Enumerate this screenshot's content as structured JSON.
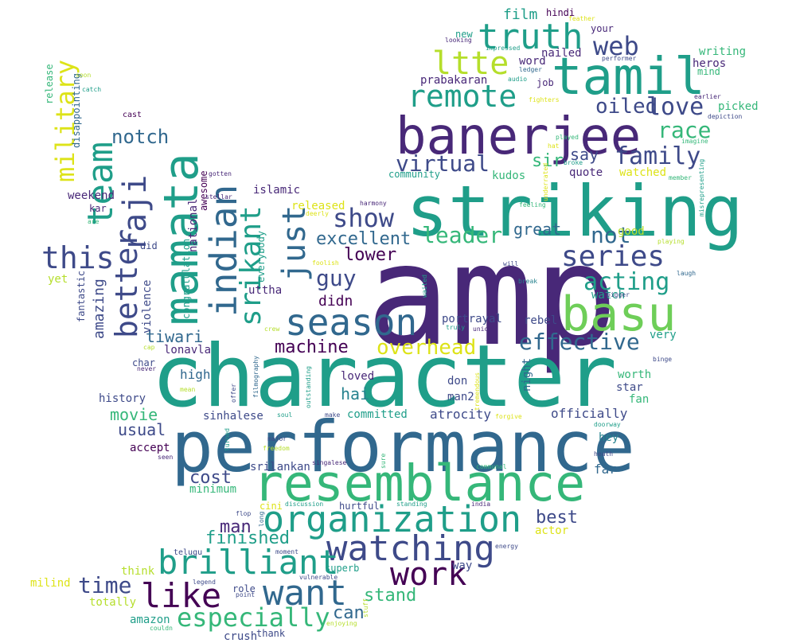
{
  "palette": {
    "dark_purple": "#440154",
    "indigo": "#482878",
    "slate_blue": "#3e4a89",
    "steel_blue": "#31688e",
    "blue_teal": "#26828e",
    "teal": "#1f9e89",
    "green_teal": "#35b779",
    "green": "#6ece58",
    "lime": "#b5de2b",
    "yellow": "#dde318"
  },
  "words": [
    {
      "text": "amp"
    },
    {
      "text": "character"
    },
    {
      "text": "performance"
    },
    {
      "text": "striking"
    },
    {
      "text": "banerjee"
    },
    {
      "text": "resemblance"
    },
    {
      "text": "mamata"
    },
    {
      "text": "tamil"
    },
    {
      "text": "basu"
    },
    {
      "text": "organization"
    },
    {
      "text": "indian"
    },
    {
      "text": "season"
    },
    {
      "text": "watching"
    },
    {
      "text": "truth"
    },
    {
      "text": "team"
    },
    {
      "text": "brilliant"
    },
    {
      "text": "want"
    },
    {
      "text": "like"
    },
    {
      "text": "work"
    },
    {
      "text": "remote"
    },
    {
      "text": "better"
    },
    {
      "text": "just"
    },
    {
      "text": "srikant"
    },
    {
      "text": "raji"
    },
    {
      "text": "this"
    },
    {
      "text": "series"
    },
    {
      "text": "ltte"
    },
    {
      "text": "show"
    },
    {
      "text": "especially"
    },
    {
      "text": "family"
    },
    {
      "text": "acting"
    },
    {
      "text": "web"
    },
    {
      "text": "love"
    },
    {
      "text": "effective"
    },
    {
      "text": "military"
    },
    {
      "text": "leader"
    },
    {
      "text": "race"
    },
    {
      "text": "virtual"
    },
    {
      "text": "overhead"
    },
    {
      "text": "time"
    },
    {
      "text": "guy"
    },
    {
      "text": "machine"
    },
    {
      "text": "oiled"
    },
    {
      "text": "not"
    },
    {
      "text": "notch"
    },
    {
      "text": "excellent"
    },
    {
      "text": "lower"
    },
    {
      "text": "finished"
    },
    {
      "text": "stand"
    },
    {
      "text": "best"
    },
    {
      "text": "cost"
    },
    {
      "text": "man"
    },
    {
      "text": "movie"
    },
    {
      "text": "usual"
    },
    {
      "text": "hai"
    },
    {
      "text": "can"
    },
    {
      "text": "great"
    },
    {
      "text": "say"
    },
    {
      "text": "sir"
    },
    {
      "text": "amazing"
    },
    {
      "text": "tiwari"
    },
    {
      "text": "didn"
    },
    {
      "text": "film"
    },
    {
      "text": "high"
    },
    {
      "text": "committed"
    },
    {
      "text": "atrocity"
    },
    {
      "text": "officially"
    },
    {
      "text": "islamic"
    },
    {
      "text": "good"
    },
    {
      "text": "watch"
    },
    {
      "text": "portrayal"
    },
    {
      "text": "night"
    },
    {
      "text": "fan"
    },
    {
      "text": "worth"
    },
    {
      "text": "star"
    },
    {
      "text": "hey"
    },
    {
      "text": "far"
    },
    {
      "text": "loved"
    },
    {
      "text": "don"
    },
    {
      "text": "man2"
    },
    {
      "text": "rebel"
    },
    {
      "text": "very"
    },
    {
      "text": "nailed"
    },
    {
      "text": "prabakaran"
    },
    {
      "text": "word"
    },
    {
      "text": "hindi"
    },
    {
      "text": "your"
    },
    {
      "text": "new"
    },
    {
      "text": "writing"
    },
    {
      "text": "heros"
    },
    {
      "text": "mind"
    },
    {
      "text": "picked"
    },
    {
      "text": "weekend"
    },
    {
      "text": "kar"
    },
    {
      "text": "national"
    },
    {
      "text": "violence"
    },
    {
      "text": "congratulation"
    },
    {
      "text": "awesome"
    },
    {
      "text": "everybody"
    },
    {
      "text": "uttha"
    },
    {
      "text": "released"
    },
    {
      "text": "kudos"
    },
    {
      "text": "quote"
    },
    {
      "text": "watched"
    },
    {
      "text": "community"
    },
    {
      "text": "history"
    },
    {
      "text": "sinhalese"
    },
    {
      "text": "accept"
    },
    {
      "text": "srilankan"
    },
    {
      "text": "minimum"
    },
    {
      "text": "lonavla"
    },
    {
      "text": "char"
    },
    {
      "text": "release"
    },
    {
      "text": "disappointing"
    },
    {
      "text": "fantastic"
    },
    {
      "text": "yet"
    },
    {
      "text": "did"
    },
    {
      "text": "actor"
    },
    {
      "text": "milind"
    },
    {
      "text": "think"
    },
    {
      "text": "totally"
    },
    {
      "text": "amazon"
    },
    {
      "text": "telugu"
    },
    {
      "text": "superb"
    },
    {
      "text": "way"
    },
    {
      "text": "role"
    },
    {
      "text": "crush"
    },
    {
      "text": "thank"
    },
    {
      "text": "hurtful"
    },
    {
      "text": "cini"
    },
    {
      "text": "job"
    },
    {
      "text": "cast"
    },
    {
      "text": "soon"
    },
    {
      "text": "catch"
    },
    {
      "text": "are"
    },
    {
      "text": "gotten"
    },
    {
      "text": "stellar"
    },
    {
      "text": "harmony"
    },
    {
      "text": "deerly"
    },
    {
      "text": "feeling"
    },
    {
      "text": "underrated"
    },
    {
      "text": "played"
    },
    {
      "text": "broke"
    },
    {
      "text": "member"
    },
    {
      "text": "misrepresenting"
    },
    {
      "text": "playing"
    },
    {
      "text": "depiction"
    },
    {
      "text": "imagine"
    },
    {
      "text": "earlier"
    },
    {
      "text": "looking"
    },
    {
      "text": "impressed"
    },
    {
      "text": "feather"
    },
    {
      "text": "performer"
    },
    {
      "text": "ledger"
    },
    {
      "text": "audio"
    },
    {
      "text": "fighters"
    },
    {
      "text": "hat"
    },
    {
      "text": "foolish"
    },
    {
      "text": "waited"
    },
    {
      "text": "break"
    },
    {
      "text": "laugh"
    },
    {
      "text": "bigger"
    },
    {
      "text": "will"
    },
    {
      "text": "truly"
    },
    {
      "text": "union"
    },
    {
      "text": "crew"
    },
    {
      "text": "binge"
    },
    {
      "text": "cap"
    },
    {
      "text": "never"
    },
    {
      "text": "mean"
    },
    {
      "text": "filmography"
    },
    {
      "text": "offer"
    },
    {
      "text": "outstanding"
    },
    {
      "text": "tremendous"
    },
    {
      "text": "forgive"
    },
    {
      "text": "doorway"
    },
    {
      "text": "heath"
    },
    {
      "text": "soul"
    },
    {
      "text": "make"
    },
    {
      "text": "turned"
    },
    {
      "text": "major"
    },
    {
      "text": "freedom"
    },
    {
      "text": "seen"
    },
    {
      "text": "singalese"
    },
    {
      "text": "sure"
    },
    {
      "text": "communal"
    },
    {
      "text": "discussion"
    },
    {
      "text": "standing"
    },
    {
      "text": "india"
    },
    {
      "text": "flop"
    },
    {
      "text": "long"
    },
    {
      "text": "energy"
    },
    {
      "text": "moment"
    },
    {
      "text": "vulnerable"
    },
    {
      "text": "legend"
    },
    {
      "text": "point"
    },
    {
      "text": "stuff"
    },
    {
      "text": "couldn"
    },
    {
      "text": "enjoying"
    }
  ]
}
